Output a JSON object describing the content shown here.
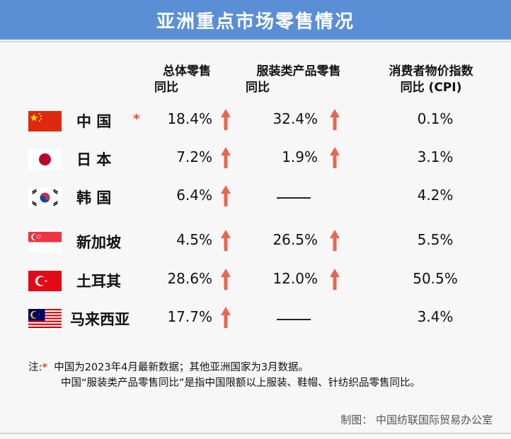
{
  "title": "亚洲重点市场零售情况",
  "chart_data": {
    "type": "table",
    "columns": [
      {
        "line1": "总体零售",
        "line2": "同比"
      },
      {
        "line1": "服装类产品零售",
        "line2": "同比"
      },
      {
        "line1": "消费者物价指数",
        "line2": "同比 (CPI)"
      }
    ],
    "rows": [
      {
        "country": "中 国",
        "flag": "china-flag",
        "star": "*",
        "retail": "18.4%",
        "apparel": "32.4%",
        "cpi": "0.1%",
        "retail_up": true,
        "apparel_up": true
      },
      {
        "country": "日 本",
        "flag": "japan-flag",
        "star": "",
        "retail": "7.2%",
        "apparel": "1.9%",
        "cpi": "3.1%",
        "retail_up": true,
        "apparel_up": true
      },
      {
        "country": "韩 国",
        "flag": "korea-flag",
        "star": "",
        "retail": "6.4%",
        "apparel": "——",
        "cpi": "4.2%",
        "retail_up": true,
        "apparel_up": false
      },
      {
        "country": "新加坡",
        "flag": "singapore-flag",
        "star": "",
        "retail": "4.5%",
        "apparel": "26.5%",
        "cpi": "5.5%",
        "retail_up": true,
        "apparel_up": true
      },
      {
        "country": "土耳其",
        "flag": "turkey-flag",
        "star": "",
        "retail": "28.6%",
        "apparel": "12.0%",
        "cpi": "50.5%",
        "retail_up": true,
        "apparel_up": true
      },
      {
        "country": "马来西亚",
        "flag": "malaysia-flag",
        "star": "",
        "retail": "17.7%",
        "apparel": "——",
        "cpi": "3.4%",
        "retail_up": true,
        "apparel_up": false
      }
    ]
  },
  "notes": {
    "prefix": "注:",
    "star": "*",
    "line1": "中国为2023年4月最新数据；其他亚洲国家为3月数据。",
    "line2": "中国“服装类产品零售同比”是指中国限额以上服装、鞋帽、针纺织品零售同比。"
  },
  "credit": "制图：  中国纺联国际贸易办公室",
  "colors": {
    "title_bar": "#5a8fd6",
    "arrow": "#e8664f",
    "star": "#e04a3a"
  }
}
